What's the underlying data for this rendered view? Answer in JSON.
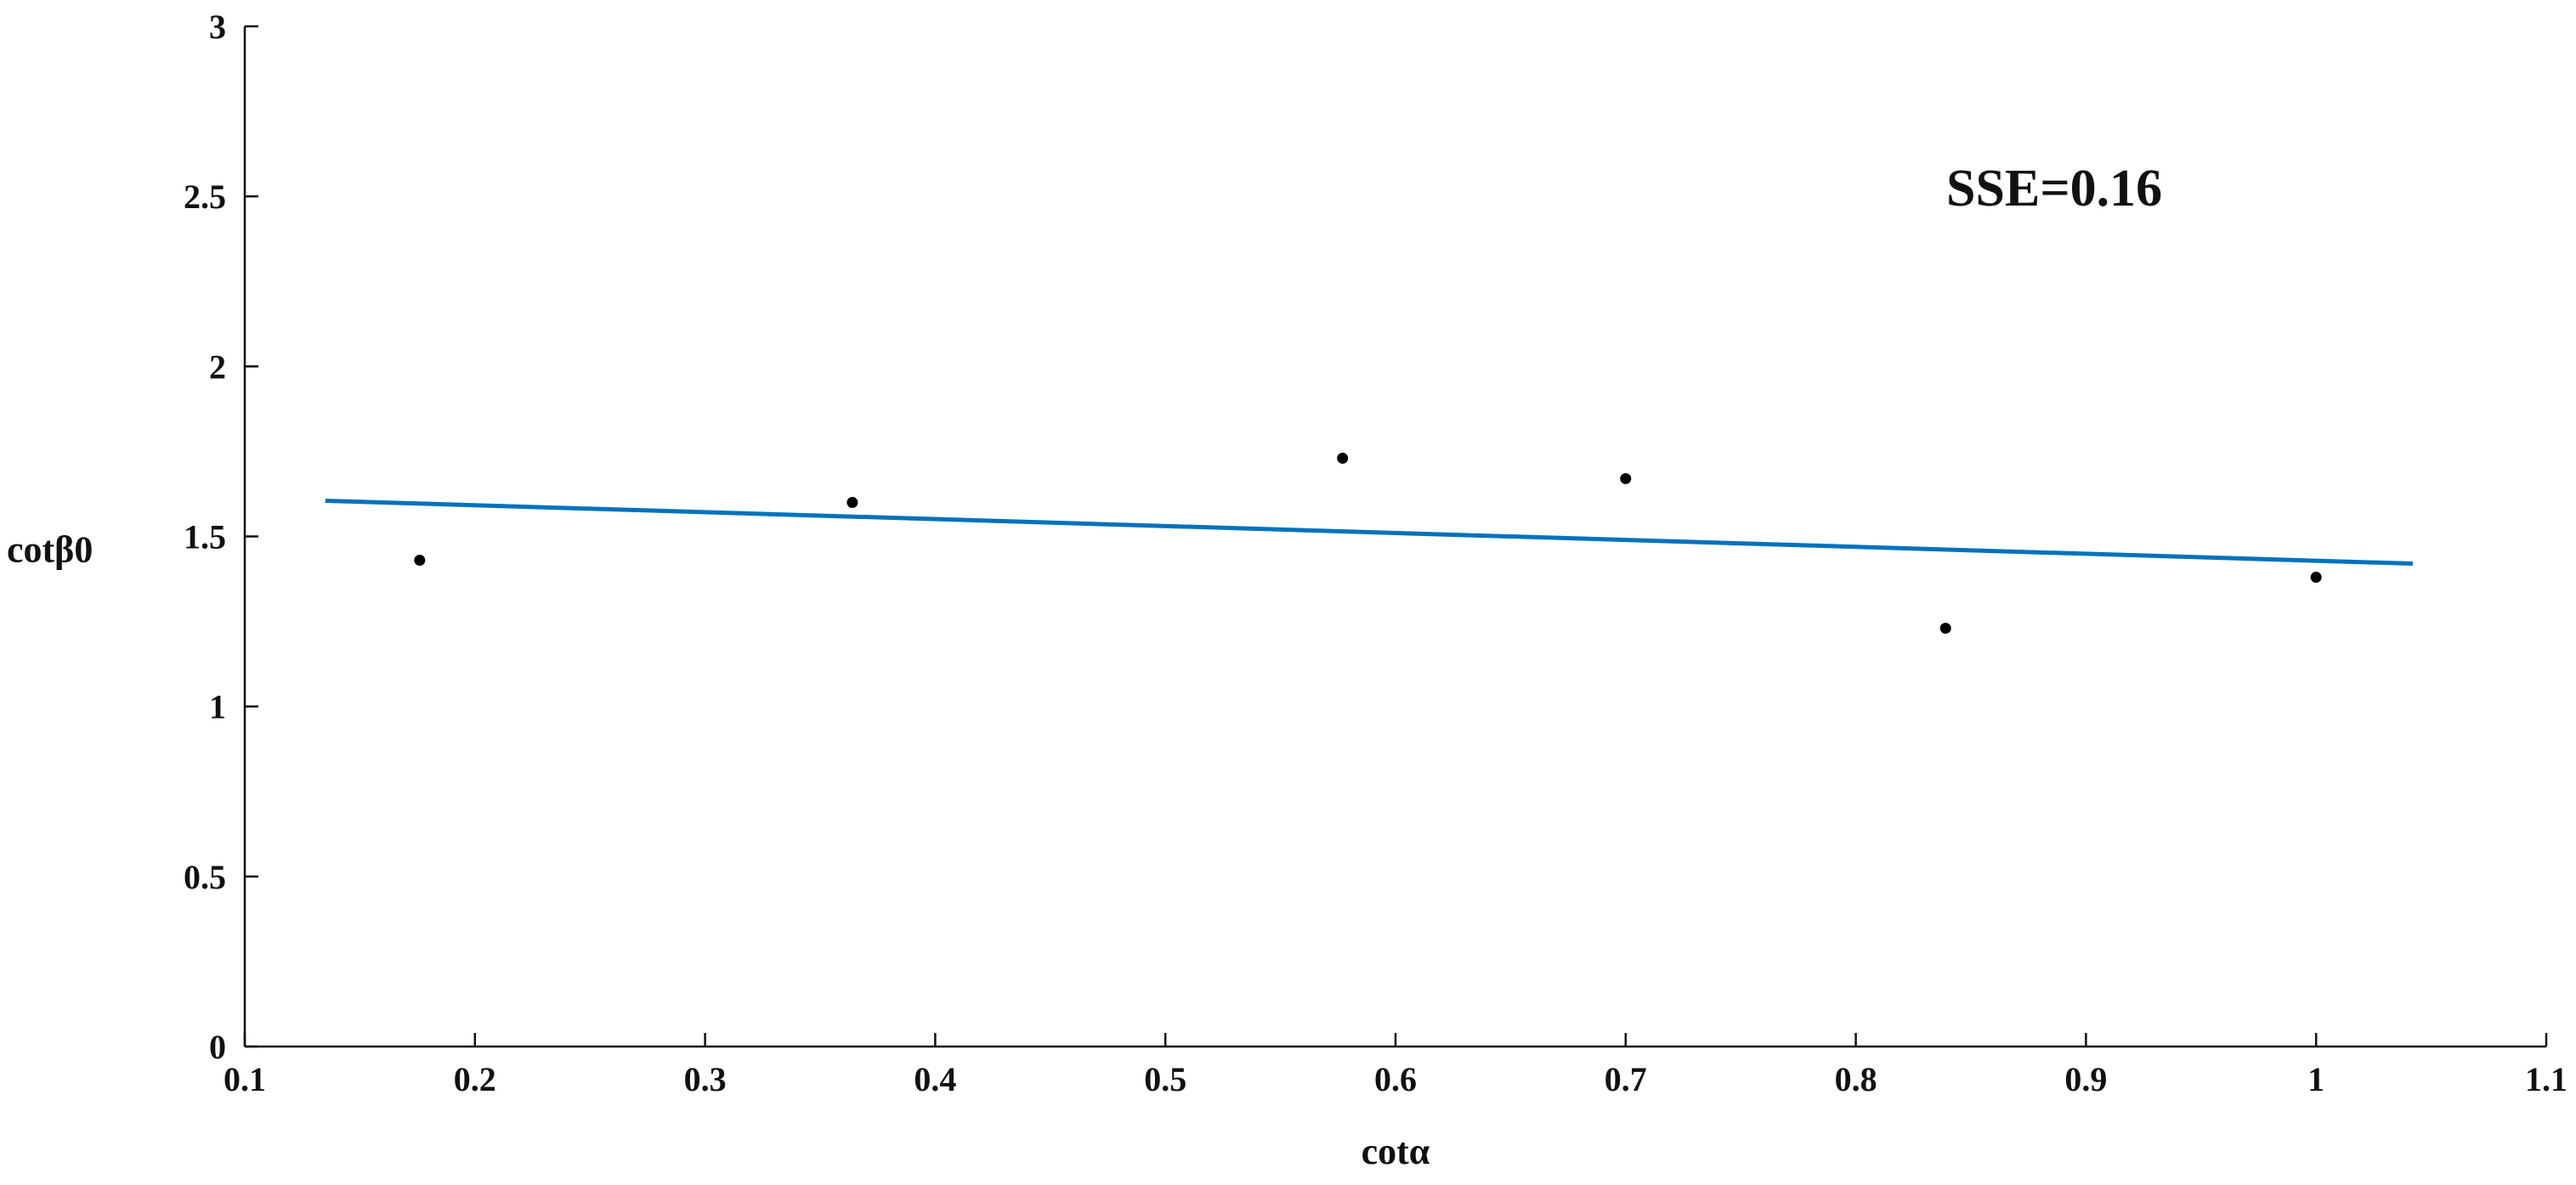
{
  "chart_data": {
    "type": "scatter",
    "title": "",
    "xlabel": "cotα",
    "ylabel": "cotβ0",
    "xlim": [
      0.1,
      1.1
    ],
    "ylim": [
      0,
      3
    ],
    "xticks": [
      0.1,
      0.2,
      0.3,
      0.4,
      0.5,
      0.6,
      0.7,
      0.8,
      0.9,
      1,
      1.1
    ],
    "xtick_labels": [
      "0.1",
      "0.2",
      "0.3",
      "0.4",
      "0.5",
      "0.6",
      "0.7",
      "0.8",
      "0.9",
      "1",
      "1.1"
    ],
    "yticks": [
      0,
      0.5,
      1,
      1.5,
      2,
      2.5,
      3
    ],
    "ytick_labels": [
      "0",
      "0.5",
      "1",
      "1.5",
      "2",
      "2.5",
      "3"
    ],
    "grid": false,
    "legend": "none",
    "annotation": "SSE=0.16",
    "series": [
      {
        "type": "scatter",
        "color": "#000000",
        "x": [
          0.176,
          0.364,
          0.577,
          0.7,
          0.839,
          1.0
        ],
        "y": [
          1.43,
          1.6,
          1.73,
          1.67,
          1.23,
          1.38
        ]
      },
      {
        "type": "line",
        "color": "#0072BD",
        "x": [
          0.135,
          1.042
        ],
        "y": [
          1.605,
          1.42
        ]
      }
    ]
  }
}
